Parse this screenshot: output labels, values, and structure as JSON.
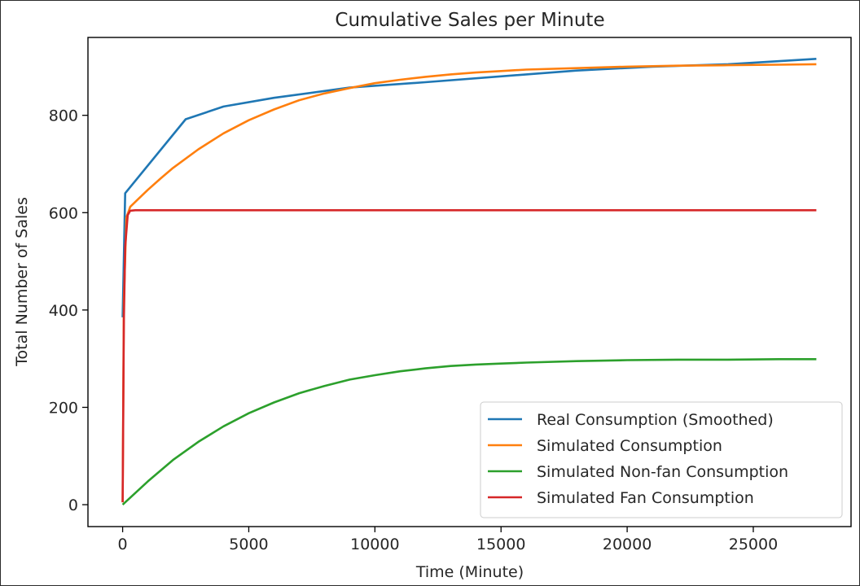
{
  "chart_data": {
    "type": "line",
    "title": "Cumulative Sales per Minute",
    "xlabel": "Time (Minute)",
    "ylabel": "Total Number of Sales",
    "xlim": [
      -1375,
      28875
    ],
    "ylim": [
      -45,
      960
    ],
    "xticks": [
      0,
      5000,
      10000,
      15000,
      20000,
      25000
    ],
    "yticks": [
      0,
      200,
      400,
      600,
      800
    ],
    "grid": false,
    "legend_position": "lower-right",
    "series": [
      {
        "name": "Real Consumption (Smoothed)",
        "color": "#1f77b4",
        "x": [
          0,
          100,
          2500,
          4000,
          6000,
          9000,
          12000,
          15000,
          18000,
          21000,
          24000,
          27500
        ],
        "y": [
          385,
          640,
          792,
          818,
          836,
          857,
          868,
          880,
          892,
          900,
          905,
          916
        ]
      },
      {
        "name": "Simulated Consumption",
        "color": "#ff7f0e",
        "x": [
          0,
          50,
          150,
          300,
          600,
          1000,
          1500,
          2000,
          3000,
          4000,
          5000,
          6000,
          7000,
          8000,
          9000,
          10000,
          11000,
          12000,
          13000,
          14000,
          15000,
          16000,
          18000,
          20000,
          22000,
          24000,
          26000,
          27500
        ],
        "y": [
          5,
          420,
          590,
          612,
          627,
          647,
          670,
          692,
          730,
          763,
          790,
          812,
          831,
          845,
          856,
          866,
          873,
          879,
          884,
          888,
          891,
          894,
          897,
          900,
          902,
          903,
          904,
          905
        ]
      },
      {
        "name": "Simulated Non-fan Consumption",
        "color": "#2ca02c",
        "x": [
          0,
          1000,
          2000,
          3000,
          4000,
          5000,
          6000,
          7000,
          8000,
          9000,
          10000,
          11000,
          12000,
          13000,
          14000,
          15000,
          16000,
          18000,
          20000,
          22000,
          24000,
          26000,
          27500
        ],
        "y": [
          0,
          48,
          92,
          129,
          161,
          188,
          210,
          229,
          244,
          257,
          266,
          274,
          280,
          285,
          288,
          290,
          292,
          295,
          297,
          298,
          298,
          299,
          299
        ]
      },
      {
        "name": "Simulated Fan Consumption",
        "color": "#d62728",
        "x": [
          0,
          50,
          100,
          200,
          300,
          500,
          27500
        ],
        "y": [
          5,
          380,
          530,
          595,
          604,
          605,
          605
        ]
      }
    ]
  }
}
